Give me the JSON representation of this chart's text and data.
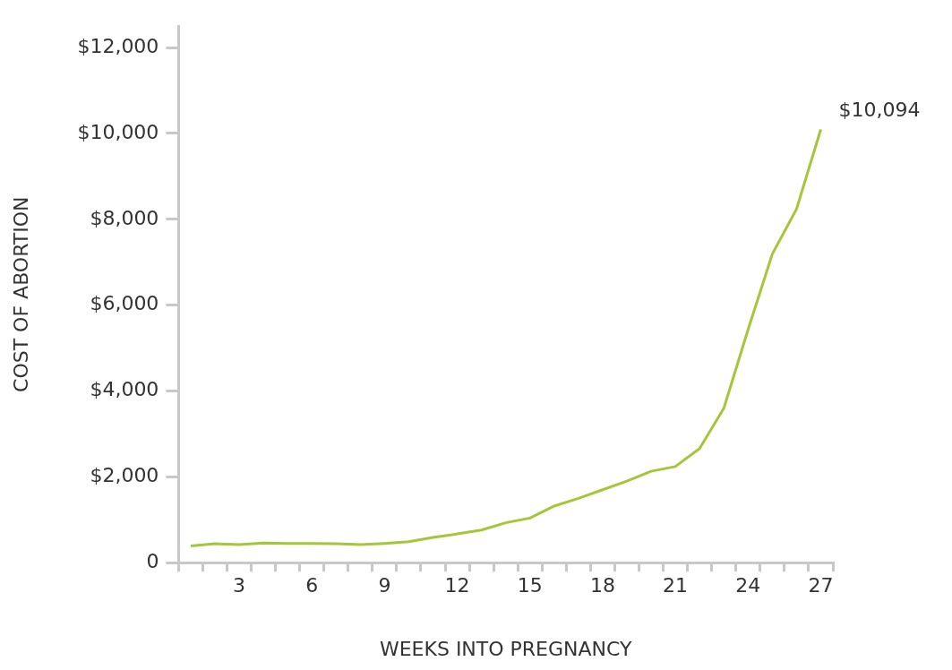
{
  "chart_data": {
    "type": "line",
    "xlabel": "WEEKS INTO PREGNANCY",
    "ylabel": "COST OF ABORTION",
    "categories": [
      null,
      null,
      "3",
      null,
      null,
      "6",
      null,
      null,
      "9",
      null,
      null,
      "12",
      null,
      null,
      "15",
      null,
      null,
      "18",
      null,
      null,
      "21",
      null,
      null,
      "24",
      null,
      null,
      "27"
    ],
    "series": [
      {
        "color": "#a4c639",
        "values": [
          390,
          440,
          420,
          460,
          450,
          450,
          440,
          420,
          450,
          490,
          590,
          670,
          760,
          930,
          1040,
          1320,
          1500,
          1700,
          1900,
          2130,
          2240,
          2660,
          3600,
          5430,
          7190,
          8240,
          10094
        ]
      }
    ],
    "ylim": [
      0,
      12500
    ],
    "yticks": [
      0,
      {
        "value": 2000,
        "label": "$2,000"
      },
      {
        "value": 4000,
        "label": "$4,000"
      },
      {
        "value": 6000,
        "label": "$6,000"
      },
      {
        "value": 8000,
        "label": "$8,000"
      },
      {
        "value": 10000,
        "label": "$10,000"
      },
      {
        "value": 12000,
        "label": "$12,000"
      }
    ],
    "annotations": [
      {
        "text": "$10,094",
        "x": "27",
        "y": 10094
      }
    ],
    "grid": false,
    "legend": false,
    "marker": "none",
    "line_style": "solid"
  }
}
